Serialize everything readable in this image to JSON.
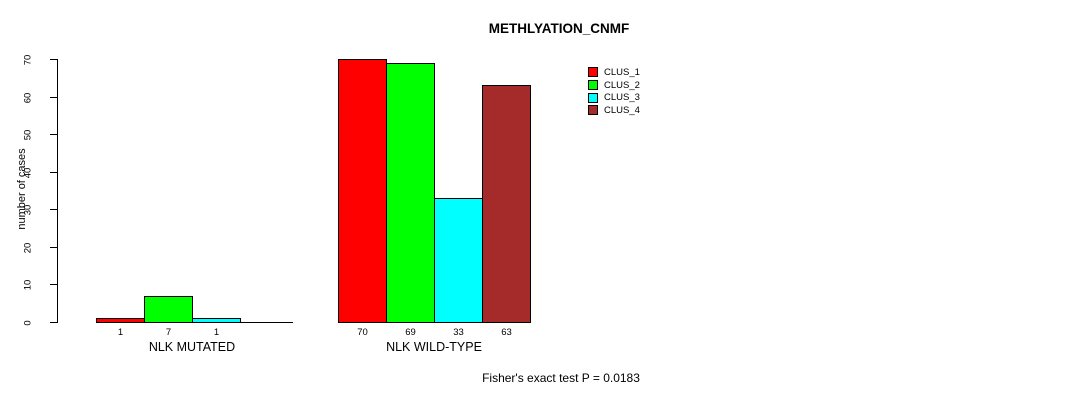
{
  "chart_data": {
    "type": "bar",
    "title": "METHLYATION_CNMF",
    "xlabel": "",
    "ylabel": "number of cases",
    "ylim": [
      0,
      70
    ],
    "yticks": [
      0,
      10,
      20,
      30,
      40,
      50,
      60,
      70
    ],
    "categories": [
      "NLK MUTATED",
      "NLK WILD-TYPE"
    ],
    "series": [
      {
        "name": "CLUS_1",
        "color": "#FF0000",
        "values": [
          1,
          70
        ]
      },
      {
        "name": "CLUS_2",
        "color": "#00FF00",
        "values": [
          7,
          69
        ]
      },
      {
        "name": "CLUS_3",
        "color": "#00FFFF",
        "values": [
          1,
          33
        ]
      },
      {
        "name": "CLUS_4",
        "color": "#A52A2A",
        "values": [
          0,
          63
        ]
      }
    ],
    "bar_value_labels_shown": true,
    "zero_bars_unlabeled": true,
    "legend_position": "top-right",
    "grid": false,
    "background": "#FFFFFF",
    "annotation": "Fisher's exact test P = 0.0183"
  }
}
